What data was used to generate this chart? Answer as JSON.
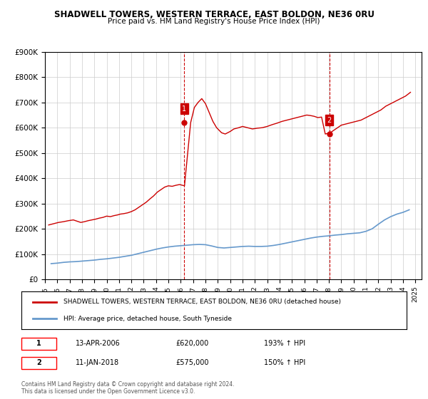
{
  "title": "SHADWELL TOWERS, WESTERN TERRACE, EAST BOLDON, NE36 0RU",
  "subtitle": "Price paid vs. HM Land Registry's House Price Index (HPI)",
  "legend_line1": "SHADWELL TOWERS, WESTERN TERRACE, EAST BOLDON, NE36 0RU (detached house)",
  "legend_line2": "HPI: Average price, detached house, South Tyneside",
  "annotation1": {
    "label": "1",
    "date": "13-APR-2006",
    "price": "£620,000",
    "hpi": "193% ↑ HPI",
    "x_year": 2006.28,
    "y_val": 620000
  },
  "annotation2": {
    "label": "2",
    "date": "11-JAN-2018",
    "price": "£575,000",
    "hpi": "150% ↑ HPI",
    "x_year": 2018.03,
    "y_val": 575000
  },
  "footer": "Contains HM Land Registry data © Crown copyright and database right 2024.\nThis data is licensed under the Open Government Licence v3.0.",
  "ylim": [
    0,
    900000
  ],
  "yticks": [
    0,
    100000,
    200000,
    300000,
    400000,
    500000,
    600000,
    700000,
    800000,
    900000
  ],
  "xlim": [
    1995,
    2025.5
  ],
  "xticks": [
    1995,
    1996,
    1997,
    1998,
    1999,
    2000,
    2001,
    2002,
    2003,
    2004,
    2005,
    2006,
    2007,
    2008,
    2009,
    2010,
    2011,
    2012,
    2013,
    2014,
    2015,
    2016,
    2017,
    2018,
    2019,
    2020,
    2021,
    2022,
    2023,
    2024,
    2025
  ],
  "hpi_color": "#6699cc",
  "price_color": "#cc0000",
  "background_color": "#ffffff",
  "grid_color": "#cccccc",
  "vline_color": "#cc0000",
  "hpi_data": {
    "years": [
      1995.5,
      1996.0,
      1996.5,
      1997.0,
      1997.5,
      1998.0,
      1998.5,
      1999.0,
      1999.5,
      2000.0,
      2000.5,
      2001.0,
      2001.5,
      2002.0,
      2002.5,
      2003.0,
      2003.5,
      2004.0,
      2004.5,
      2005.0,
      2005.5,
      2006.0,
      2006.5,
      2007.0,
      2007.5,
      2008.0,
      2008.5,
      2009.0,
      2009.5,
      2010.0,
      2010.5,
      2011.0,
      2011.5,
      2012.0,
      2012.5,
      2013.0,
      2013.5,
      2014.0,
      2014.5,
      2015.0,
      2015.5,
      2016.0,
      2016.5,
      2017.0,
      2017.5,
      2018.0,
      2018.5,
      2019.0,
      2019.5,
      2020.0,
      2020.5,
      2021.0,
      2021.5,
      2022.0,
      2022.5,
      2023.0,
      2023.5,
      2024.0,
      2024.5
    ],
    "values": [
      62000,
      64000,
      67000,
      69000,
      70000,
      72000,
      74000,
      76000,
      79000,
      81000,
      84000,
      87000,
      91000,
      95000,
      101000,
      107000,
      113000,
      119000,
      124000,
      128000,
      131000,
      133000,
      135000,
      137000,
      138000,
      137000,
      132000,
      126000,
      124000,
      126000,
      128000,
      130000,
      131000,
      130000,
      130000,
      131000,
      134000,
      138000,
      143000,
      148000,
      153000,
      158000,
      163000,
      167000,
      170000,
      172000,
      175000,
      177000,
      180000,
      182000,
      184000,
      190000,
      200000,
      218000,
      235000,
      248000,
      258000,
      265000,
      275000
    ]
  },
  "price_data": {
    "years": [
      1995.3,
      1995.7,
      1996.1,
      1996.5,
      1996.9,
      1997.3,
      1997.6,
      1997.9,
      1998.2,
      1998.5,
      1998.8,
      1999.1,
      1999.4,
      1999.7,
      2000.0,
      2000.3,
      2000.6,
      2000.9,
      2001.1,
      2001.4,
      2001.7,
      2002.0,
      2002.3,
      2002.6,
      2002.9,
      2003.2,
      2003.5,
      2003.8,
      2004.1,
      2004.4,
      2004.7,
      2005.0,
      2005.3,
      2005.6,
      2005.9,
      2006.3,
      2006.8,
      2007.1,
      2007.4,
      2007.7,
      2008.0,
      2008.3,
      2008.6,
      2008.9,
      2009.3,
      2009.6,
      2010.0,
      2010.3,
      2010.7,
      2011.0,
      2011.4,
      2011.8,
      2012.2,
      2012.6,
      2013.0,
      2013.4,
      2013.8,
      2014.2,
      2014.6,
      2015.0,
      2015.4,
      2015.8,
      2016.2,
      2016.5,
      2016.8,
      2017.1,
      2017.4,
      2017.7,
      2018.1,
      2018.4,
      2018.7,
      2019.0,
      2019.4,
      2019.8,
      2020.2,
      2020.6,
      2021.0,
      2021.4,
      2021.8,
      2022.2,
      2022.6,
      2023.0,
      2023.4,
      2023.8,
      2024.2,
      2024.6
    ],
    "values": [
      215000,
      220000,
      225000,
      228000,
      232000,
      235000,
      230000,
      225000,
      228000,
      232000,
      235000,
      238000,
      242000,
      245000,
      250000,
      248000,
      252000,
      255000,
      258000,
      260000,
      263000,
      268000,
      275000,
      285000,
      295000,
      305000,
      318000,
      330000,
      345000,
      355000,
      365000,
      370000,
      368000,
      372000,
      375000,
      370000,
      620000,
      680000,
      700000,
      715000,
      695000,
      660000,
      625000,
      600000,
      580000,
      575000,
      585000,
      595000,
      600000,
      605000,
      600000,
      595000,
      598000,
      600000,
      605000,
      612000,
      618000,
      625000,
      630000,
      635000,
      640000,
      645000,
      650000,
      648000,
      645000,
      640000,
      642000,
      575000,
      580000,
      590000,
      600000,
      610000,
      615000,
      620000,
      625000,
      630000,
      640000,
      650000,
      660000,
      670000,
      685000,
      695000,
      705000,
      715000,
      725000,
      740000
    ]
  }
}
